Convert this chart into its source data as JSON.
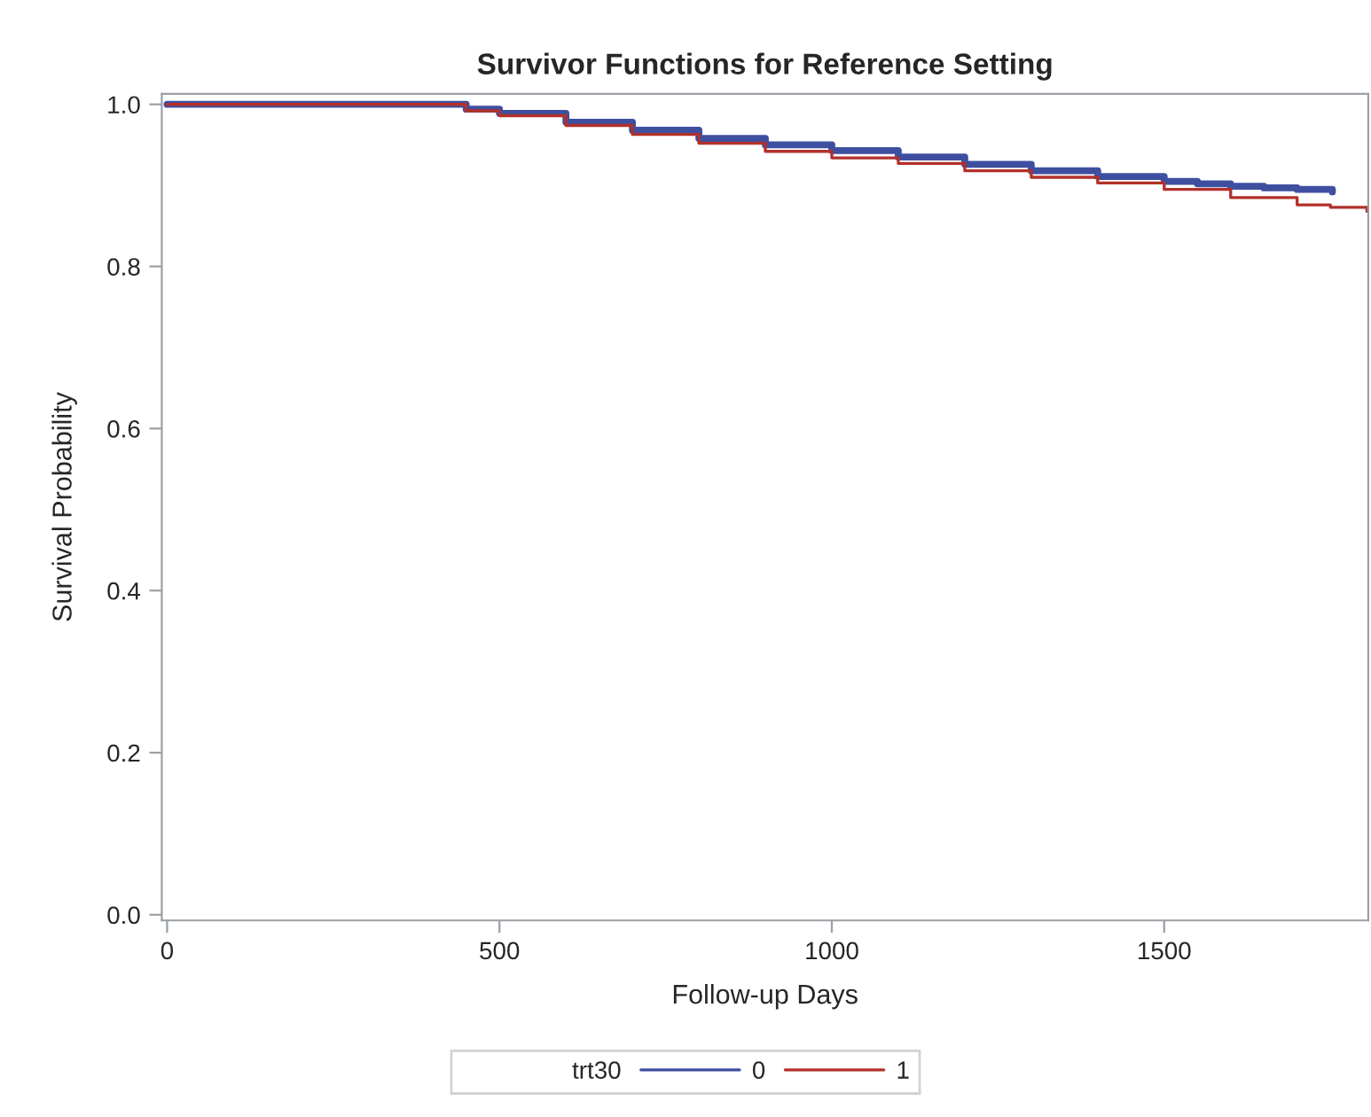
{
  "chart_data": {
    "type": "step",
    "title": "Survivor Functions for Reference Setting",
    "xlabel": "Follow-up Days",
    "ylabel": "Survival Probability",
    "legend_title": "trt30",
    "legend": "bottom",
    "grid": false,
    "xlim": [
      -8,
      1807
    ],
    "xticks": [
      0,
      500,
      1000,
      1500
    ],
    "ylim": [
      -0.007,
      1.013
    ],
    "yticks": [
      {
        "value": 0,
        "label": "0.0"
      },
      0.2,
      0.4,
      0.6,
      0.8,
      {
        "value": 1,
        "label": "1.0"
      }
    ],
    "series": [
      {
        "name": "0",
        "color": "#3f4fa0",
        "x": [
          0,
          380,
          450,
          500,
          600,
          700,
          800,
          900,
          1000,
          1100,
          1200,
          1300,
          1400,
          1500,
          1550,
          1600,
          1650,
          1700,
          1753
        ],
        "values": [
          1.0,
          1.0,
          0.994,
          0.989,
          0.978,
          0.968,
          0.958,
          0.95,
          0.943,
          0.935,
          0.926,
          0.918,
          0.911,
          0.905,
          0.902,
          0.899,
          0.897,
          0.895,
          0.892
        ]
      },
      {
        "name": "1",
        "color": "#b2312a",
        "x": [
          0,
          380,
          450,
          500,
          600,
          700,
          800,
          900,
          1000,
          1100,
          1200,
          1300,
          1400,
          1500,
          1600,
          1700,
          1750,
          1805
        ],
        "values": [
          1.0,
          1.0,
          0.992,
          0.986,
          0.974,
          0.963,
          0.952,
          0.942,
          0.934,
          0.927,
          0.918,
          0.91,
          0.903,
          0.895,
          0.885,
          0.876,
          0.873,
          0.868
        ]
      }
    ]
  }
}
